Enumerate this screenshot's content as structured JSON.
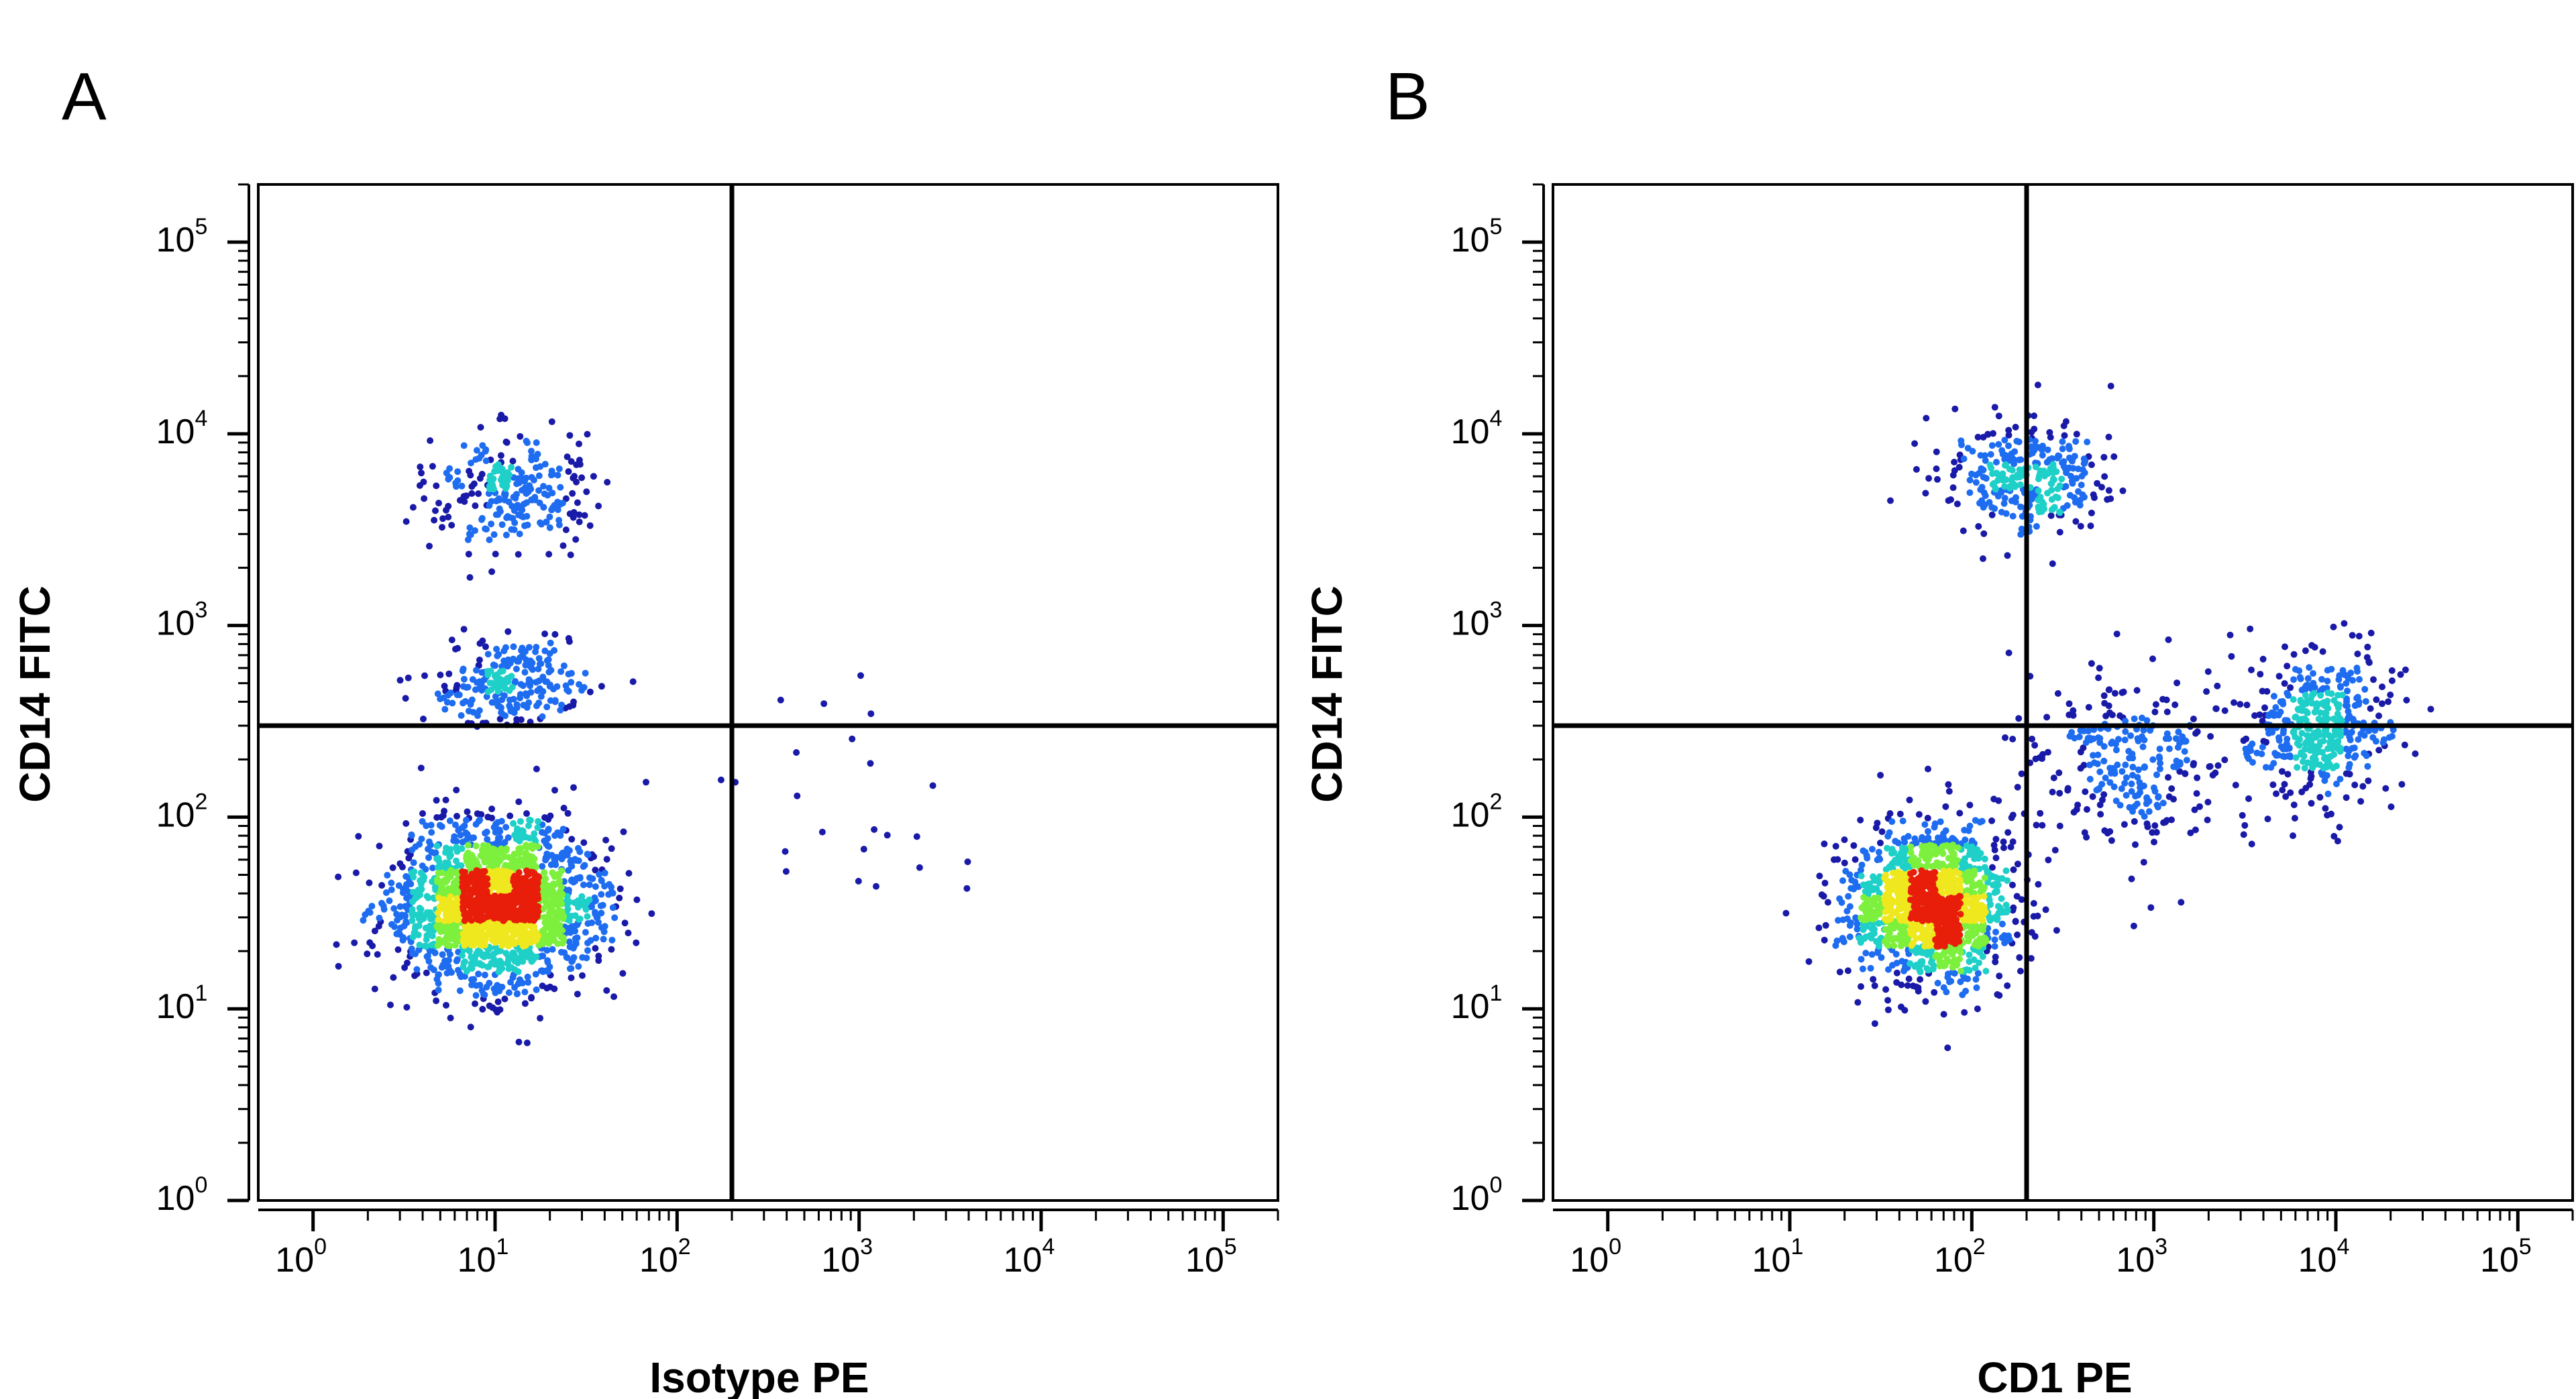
{
  "colors": {
    "density_low": "#1a1aa8",
    "density_mid_low": "#1e6cf0",
    "density_mid": "#1ed0c8",
    "density_mid_high": "#7cf03c",
    "density_high": "#f0e81e",
    "density_peak": "#e81e0a",
    "axes": "#000000",
    "gate_lines": "#000000"
  },
  "chart_data": [
    {
      "type": "scatter",
      "panel_label": "A",
      "title": "",
      "xlabel": "Isotype PE",
      "ylabel": "CD14 FITC",
      "x_scale": "log",
      "y_scale": "log",
      "xlim": [
        0.5,
        200000
      ],
      "ylim": [
        1,
        200000
      ],
      "x_tick_labels": [
        {
          "value": 1,
          "base": "10",
          "exp": "0"
        },
        {
          "value": 10,
          "base": "10",
          "exp": "1"
        },
        {
          "value": 100,
          "base": "10",
          "exp": "2"
        },
        {
          "value": 1000,
          "base": "10",
          "exp": "3"
        },
        {
          "value": 10000,
          "base": "10",
          "exp": "4"
        },
        {
          "value": 100000,
          "base": "10",
          "exp": "5"
        }
      ],
      "y_tick_labels": [
        {
          "value": 1,
          "base": "10",
          "exp": "0"
        },
        {
          "value": 10,
          "base": "10",
          "exp": "1"
        },
        {
          "value": 100,
          "base": "10",
          "exp": "2"
        },
        {
          "value": 1000,
          "base": "10",
          "exp": "3"
        },
        {
          "value": 10000,
          "base": "10",
          "exp": "4"
        },
        {
          "value": 100000,
          "base": "10",
          "exp": "5"
        }
      ],
      "quadrant_gate": {
        "x": 200,
        "y": 300
      },
      "populations": [
        {
          "x_center": 10,
          "y_center": 35,
          "x_spread_decades": 0.55,
          "y_spread_decades": 0.42,
          "weight": 0.78
        },
        {
          "x_center": 12,
          "y_center": 5000,
          "x_spread_decades": 0.4,
          "y_spread_decades": 0.28,
          "weight": 0.11
        },
        {
          "x_center": 12,
          "y_center": 500,
          "x_spread_decades": 0.4,
          "y_spread_decades": 0.22,
          "weight": 0.1
        },
        {
          "x_center": 800,
          "y_center": 150,
          "x_spread_decades": 0.6,
          "y_spread_decades": 0.7,
          "weight": 0.01
        }
      ],
      "grid": false,
      "legend": "none"
    },
    {
      "type": "scatter",
      "panel_label": "B",
      "title": "",
      "xlabel": "CD1 PE",
      "ylabel": "CD14 FITC",
      "x_scale": "log",
      "y_scale": "log",
      "xlim": [
        0.5,
        200000
      ],
      "ylim": [
        1,
        200000
      ],
      "x_tick_labels": [
        {
          "value": 1,
          "base": "10",
          "exp": "0"
        },
        {
          "value": 10,
          "base": "10",
          "exp": "1"
        },
        {
          "value": 100,
          "base": "10",
          "exp": "2"
        },
        {
          "value": 1000,
          "base": "10",
          "exp": "3"
        },
        {
          "value": 10000,
          "base": "10",
          "exp": "4"
        },
        {
          "value": 100000,
          "base": "10",
          "exp": "5"
        }
      ],
      "y_tick_labels": [
        {
          "value": 1,
          "base": "10",
          "exp": "0"
        },
        {
          "value": 10,
          "base": "10",
          "exp": "1"
        },
        {
          "value": 100,
          "base": "10",
          "exp": "2"
        },
        {
          "value": 1000,
          "base": "10",
          "exp": "3"
        },
        {
          "value": 10000,
          "base": "10",
          "exp": "4"
        },
        {
          "value": 100000,
          "base": "10",
          "exp": "5"
        }
      ],
      "quadrant_gate": {
        "x": 200,
        "y": 300
      },
      "populations": [
        {
          "x_center": 60,
          "y_center": 35,
          "x_spread_decades": 0.45,
          "y_spread_decades": 0.4,
          "weight": 0.58
        },
        {
          "x_center": 200,
          "y_center": 6000,
          "x_spread_decades": 0.45,
          "y_spread_decades": 0.3,
          "weight": 0.13
        },
        {
          "x_center": 8000,
          "y_center": 300,
          "x_spread_decades": 0.38,
          "y_spread_decades": 0.4,
          "weight": 0.17
        },
        {
          "x_center": 800,
          "y_center": 200,
          "x_spread_decades": 0.6,
          "y_spread_decades": 0.5,
          "weight": 0.12
        }
      ],
      "grid": false,
      "legend": "none"
    }
  ]
}
